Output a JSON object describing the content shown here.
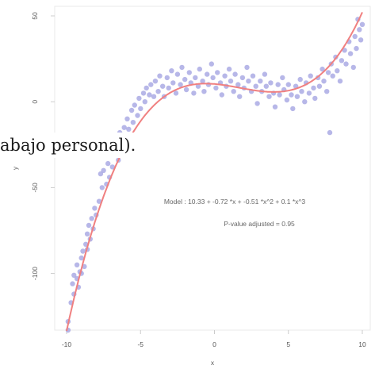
{
  "overlay_caption": "abajo personal).",
  "chart_data": {
    "type": "scatter",
    "xlabel": "x",
    "ylabel": "y",
    "xlim": [
      -10,
      10
    ],
    "ylim": [
      -133,
      50
    ],
    "x_ticks": [
      -10,
      -5,
      0,
      5,
      10
    ],
    "y_ticks": [
      -100,
      -50,
      0,
      50
    ],
    "grid": false,
    "point_color": "#9f9fe0",
    "curve_color": "#f08080",
    "annotations": {
      "model": "Model : 10.33 + -0.72 *x + -0.51 *x^2 + 0.1 *x^3",
      "pvalue": "P-value adjusted = 0.95"
    },
    "fit": {
      "name": "Model",
      "coefficients": [
        10.33,
        -0.72,
        -0.51,
        0.1
      ]
    },
    "points": [
      [
        -9.9,
        -128
      ],
      [
        -9.9,
        -133
      ],
      [
        -9.7,
        -117
      ],
      [
        -9.6,
        -106
      ],
      [
        -9.5,
        -101
      ],
      [
        -9.5,
        -112
      ],
      [
        -9.3,
        -103
      ],
      [
        -9.3,
        -95
      ],
      [
        -9.2,
        -108
      ],
      [
        -9.1,
        -99
      ],
      [
        -9.0,
        -91
      ],
      [
        -9.0,
        -100
      ],
      [
        -8.9,
        -87
      ],
      [
        -8.8,
        -96
      ],
      [
        -8.7,
        -83
      ],
      [
        -8.6,
        -77
      ],
      [
        -8.6,
        -86
      ],
      [
        -8.5,
        -72
      ],
      [
        -8.4,
        -80
      ],
      [
        -8.3,
        -68
      ],
      [
        -8.2,
        -74
      ],
      [
        -8.1,
        -62
      ],
      [
        -8.0,
        -66
      ],
      [
        -7.8,
        -58
      ],
      [
        -7.7,
        -42
      ],
      [
        -7.6,
        -50
      ],
      [
        -7.5,
        -40
      ],
      [
        -7.3,
        -48
      ],
      [
        -7.2,
        -36
      ],
      [
        -7.1,
        -44
      ],
      [
        -7.0,
        -30
      ],
      [
        -6.9,
        -38
      ],
      [
        -6.8,
        -28
      ],
      [
        -6.7,
        -22
      ],
      [
        -6.5,
        -34
      ],
      [
        -6.4,
        -18
      ],
      [
        -6.3,
        -25
      ],
      [
        -6.1,
        -15
      ],
      [
        -6.0,
        -20
      ],
      [
        -5.9,
        -10
      ],
      [
        -5.8,
        -16
      ],
      [
        -5.6,
        -5
      ],
      [
        -5.5,
        -12
      ],
      [
        -5.4,
        -2
      ],
      [
        -5.2,
        -8
      ],
      [
        -5.1,
        2
      ],
      [
        -5.0,
        -4
      ],
      [
        -4.8,
        5
      ],
      [
        -4.7,
        0
      ],
      [
        -4.6,
        8
      ],
      [
        -4.4,
        4
      ],
      [
        -4.3,
        10
      ],
      [
        -4.1,
        3
      ],
      [
        -4.0,
        12
      ],
      [
        -3.8,
        6
      ],
      [
        -3.7,
        15
      ],
      [
        -3.5,
        9
      ],
      [
        -3.4,
        3
      ],
      [
        -3.2,
        14
      ],
      [
        -3.1,
        8
      ],
      [
        -2.9,
        18
      ],
      [
        -2.8,
        11
      ],
      [
        -2.6,
        5
      ],
      [
        -2.5,
        16
      ],
      [
        -2.3,
        10
      ],
      [
        -2.2,
        20
      ],
      [
        -2.0,
        13
      ],
      [
        -1.9,
        7
      ],
      [
        -1.7,
        17
      ],
      [
        -1.6,
        11
      ],
      [
        -1.4,
        5
      ],
      [
        -1.3,
        14
      ],
      [
        -1.1,
        9
      ],
      [
        -1.0,
        19
      ],
      [
        -0.8,
        12
      ],
      [
        -0.7,
        6
      ],
      [
        -0.5,
        16
      ],
      [
        -0.4,
        10
      ],
      [
        -0.2,
        22
      ],
      [
        -0.1,
        14
      ],
      [
        0.1,
        8
      ],
      [
        0.2,
        17
      ],
      [
        0.4,
        11
      ],
      [
        0.5,
        4
      ],
      [
        0.7,
        15
      ],
      [
        0.8,
        9
      ],
      [
        1.0,
        19
      ],
      [
        1.1,
        12
      ],
      [
        1.3,
        6
      ],
      [
        1.4,
        16
      ],
      [
        1.6,
        10
      ],
      [
        1.7,
        3
      ],
      [
        1.9,
        14
      ],
      [
        2.0,
        8
      ],
      [
        2.2,
        20
      ],
      [
        2.3,
        12
      ],
      [
        2.5,
        6
      ],
      [
        2.6,
        15
      ],
      [
        2.8,
        9
      ],
      [
        2.9,
        -1
      ],
      [
        3.1,
        12
      ],
      [
        3.2,
        6
      ],
      [
        3.4,
        16
      ],
      [
        3.5,
        9
      ],
      [
        3.7,
        3
      ],
      [
        3.8,
        11
      ],
      [
        4.0,
        5
      ],
      [
        4.1,
        -3
      ],
      [
        4.3,
        10
      ],
      [
        4.4,
        4
      ],
      [
        4.6,
        14
      ],
      [
        4.7,
        7
      ],
      [
        4.9,
        1
      ],
      [
        5.0,
        10
      ],
      [
        5.2,
        4
      ],
      [
        5.3,
        -4
      ],
      [
        5.5,
        9
      ],
      [
        5.6,
        3
      ],
      [
        5.8,
        13
      ],
      [
        5.9,
        6
      ],
      [
        6.1,
        0
      ],
      [
        6.2,
        11
      ],
      [
        6.4,
        5
      ],
      [
        6.5,
        15
      ],
      [
        6.7,
        8
      ],
      [
        6.8,
        2
      ],
      [
        7.0,
        14
      ],
      [
        7.1,
        9
      ],
      [
        7.3,
        19
      ],
      [
        7.4,
        12
      ],
      [
        7.6,
        6
      ],
      [
        7.7,
        17
      ],
      [
        7.8,
        -18
      ],
      [
        7.9,
        22
      ],
      [
        8.0,
        15
      ],
      [
        8.2,
        26
      ],
      [
        8.3,
        18
      ],
      [
        8.5,
        12
      ],
      [
        8.6,
        24
      ],
      [
        8.8,
        30
      ],
      [
        8.9,
        22
      ],
      [
        9.1,
        35
      ],
      [
        9.2,
        28
      ],
      [
        9.4,
        20
      ],
      [
        9.5,
        38
      ],
      [
        9.6,
        31
      ],
      [
        9.7,
        48
      ],
      [
        9.8,
        42
      ],
      [
        9.9,
        36
      ],
      [
        10.0,
        45
      ]
    ]
  }
}
